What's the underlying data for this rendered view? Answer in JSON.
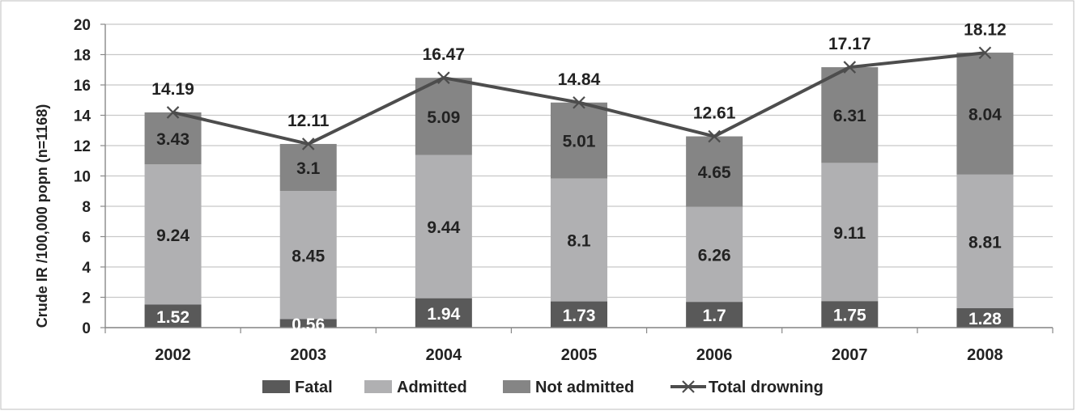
{
  "chart_data": {
    "type": "bar",
    "stacked": true,
    "title": "",
    "xlabel": "",
    "ylabel": "Crude IR /100,000 popn (n=1168)",
    "ylim": [
      0,
      20
    ],
    "yticks": [
      "0",
      "2",
      "4",
      "6",
      "8",
      "10",
      "12",
      "14",
      "16",
      "18",
      "20"
    ],
    "grid": true,
    "legend_position": "bottom",
    "categories": [
      "2002",
      "2003",
      "2004",
      "2005",
      "2006",
      "2007",
      "2008"
    ],
    "series": [
      {
        "name": "Fatal",
        "kind": "bar",
        "color": "#595959",
        "label_color": "#ffffff",
        "values": [
          1.52,
          0.56,
          1.94,
          1.73,
          1.7,
          1.75,
          1.28
        ],
        "labels": [
          "1.52",
          "0.56",
          "1.94",
          "1.73",
          "1.7",
          "1.75",
          "1.28"
        ]
      },
      {
        "name": "Admitted",
        "kind": "bar",
        "color": "#b0b0b2",
        "label_color": "#222222",
        "values": [
          9.24,
          8.45,
          9.44,
          8.1,
          6.26,
          9.11,
          8.81
        ],
        "labels": [
          "9.24",
          "8.45",
          "9.44",
          "8.1",
          "6.26",
          "9.11",
          "8.81"
        ]
      },
      {
        "name": "Not admitted",
        "kind": "bar",
        "color": "#858585",
        "label_color": "#222222",
        "values": [
          3.43,
          3.1,
          5.09,
          5.01,
          4.65,
          6.31,
          8.04
        ],
        "labels": [
          "3.43",
          "3.1",
          "5.09",
          "5.01",
          "4.65",
          "6.31",
          "8.04"
        ]
      },
      {
        "name": "Total drowning",
        "kind": "line",
        "color": "#4d4d4d",
        "marker": "x",
        "label_color": "#222222",
        "values": [
          14.19,
          12.11,
          16.47,
          14.84,
          12.61,
          17.17,
          18.12
        ],
        "labels": [
          "14.19",
          "12.11",
          "16.47",
          "14.84",
          "12.61",
          "17.17",
          "18.12"
        ]
      }
    ]
  }
}
